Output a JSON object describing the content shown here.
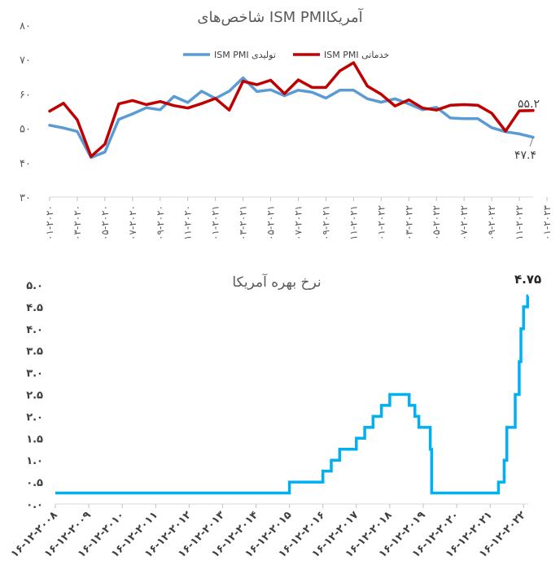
{
  "chart_data": [
    {
      "type": "line",
      "title": "شاخص‌های  ISM PMIآمریکا",
      "y_ticks": [
        "۸۰",
        "۷۰",
        "۶۰",
        "۵۰",
        "۴۰",
        "۳۰"
      ],
      "ylim": [
        30,
        80
      ],
      "x_labels": [
        "۰۱-۲۰۲۰",
        "۰۳-۲۰۲۰",
        "۰۵-۲۰۲۰",
        "۰۷-۲۰۲۰",
        "۰۹-۲۰۲۰",
        "۱۱-۲۰۲۰",
        "۰۱-۲۰۲۱",
        "۰۳-۲۰۲۱",
        "۰۵-۲۰۲۱",
        "۰۷-۲۰۲۱",
        "۰۹-۲۰۲۱",
        "۱۱-۲۰۲۱",
        "۰۱-۲۰۲۲",
        "۰۳-۲۰۲۲",
        "۰۵-۲۰۲۲",
        "۰۷-۲۰۲۲",
        "۰۹-۲۰۲۲",
        "۱۱-۲۰۲۲",
        "۰۱-۲۰۲۳"
      ],
      "legend_position": "top",
      "series": [
        {
          "name": "ISM PMI تولیدی",
          "color": "#5B9BD5",
          "values": [
            50.9,
            50.1,
            49.1,
            41.5,
            43.1,
            52.6,
            54.2,
            56.0,
            55.4,
            59.3,
            57.5,
            60.8,
            58.7,
            60.8,
            64.7,
            60.7,
            61.2,
            59.5,
            61.1,
            60.5,
            58.8,
            61.1,
            61.1,
            58.6,
            57.6,
            58.6,
            57.1,
            55.4,
            56.1,
            53.0,
            52.8,
            52.8,
            50.2,
            49.0,
            48.4,
            47.4
          ]
        },
        {
          "name": "ISM PMI خدماتی",
          "color": "#C00000",
          "values": [
            55.0,
            57.3,
            52.5,
            41.8,
            45.4,
            57.1,
            58.1,
            56.9,
            57.8,
            56.6,
            55.9,
            57.2,
            58.7,
            55.3,
            63.7,
            62.7,
            64.0,
            60.1,
            64.1,
            61.9,
            61.9,
            66.7,
            69.1,
            62.3,
            59.9,
            56.5,
            58.3,
            55.9,
            55.3,
            56.7,
            56.9,
            56.7,
            54.4,
            49.2,
            55.1,
            55.2
          ]
        }
      ],
      "annotations": [
        "۵۵.۲",
        "۴۷.۴"
      ]
    },
    {
      "type": "line",
      "title": "نرخ بهره آمریکا",
      "y_ticks": [
        "۵.۰",
        "۴.۵",
        "۴.۰",
        "۳.۵",
        "۳.۰",
        "۲.۵",
        "۲.۰",
        "۱.۵",
        "۱.۰",
        "۰.۵",
        "۰.۰"
      ],
      "ylim": [
        0,
        5
      ],
      "x_labels": [
        "۱۶-۱۲-۲۰۰۸",
        "۱۶-۱۲-۲۰۰۹",
        "۱۶-۱۲-۲۰۱۰",
        "۱۶-۱۲-۲۰۱۱",
        "۱۶-۱۲-۲۰۱۲",
        "۱۶-۱۲-۲۰۱۳",
        "۱۶-۱۲-۲۰۱۴",
        "۱۶-۱۲-۲۰۱۵",
        "۱۶-۱۲-۲۰۱۶",
        "۱۶-۱۲-۲۰۱۷",
        "۱۶-۱۲-۲۰۱۸",
        "۱۶-۱۲-۲۰۱۹",
        "۱۶-۱۲-۲۰۲۰",
        "۱۶-۱۲-۲۰۲۱",
        "۱۶-۱۲-۲۰۲۲"
      ],
      "series": [
        {
          "name": "",
          "color": "#00B0F0",
          "step_points": [
            [
              2008.96,
              0.25
            ],
            [
              2015.96,
              0.25
            ],
            [
              2015.96,
              0.5
            ],
            [
              2016.96,
              0.5
            ],
            [
              2016.96,
              0.75
            ],
            [
              2017.21,
              0.75
            ],
            [
              2017.21,
              1.0
            ],
            [
              2017.46,
              1.0
            ],
            [
              2017.46,
              1.25
            ],
            [
              2017.96,
              1.25
            ],
            [
              2017.96,
              1.5
            ],
            [
              2018.21,
              1.5
            ],
            [
              2018.21,
              1.75
            ],
            [
              2018.46,
              1.75
            ],
            [
              2018.46,
              2.0
            ],
            [
              2018.71,
              2.0
            ],
            [
              2018.71,
              2.25
            ],
            [
              2018.96,
              2.25
            ],
            [
              2018.96,
              2.5
            ],
            [
              2019.54,
              2.5
            ],
            [
              2019.54,
              2.25
            ],
            [
              2019.71,
              2.25
            ],
            [
              2019.71,
              2.0
            ],
            [
              2019.83,
              2.0
            ],
            [
              2019.83,
              1.75
            ],
            [
              2020.17,
              1.75
            ],
            [
              2020.17,
              1.25
            ],
            [
              2020.21,
              1.25
            ],
            [
              2020.21,
              0.25
            ],
            [
              2022.21,
              0.25
            ],
            [
              2022.21,
              0.5
            ],
            [
              2022.38,
              0.5
            ],
            [
              2022.38,
              1.0
            ],
            [
              2022.46,
              1.0
            ],
            [
              2022.46,
              1.75
            ],
            [
              2022.71,
              1.75
            ],
            [
              2022.71,
              2.5
            ],
            [
              2022.83,
              2.5
            ],
            [
              2022.83,
              3.25
            ],
            [
              2022.88,
              3.25
            ],
            [
              2022.88,
              4.0
            ],
            [
              2022.96,
              4.0
            ],
            [
              2022.96,
              4.5
            ],
            [
              2023.08,
              4.5
            ],
            [
              2023.08,
              4.75
            ],
            [
              2023.1,
              4.75
            ]
          ]
        }
      ],
      "annotations": [
        "۴.۷۵"
      ]
    }
  ]
}
